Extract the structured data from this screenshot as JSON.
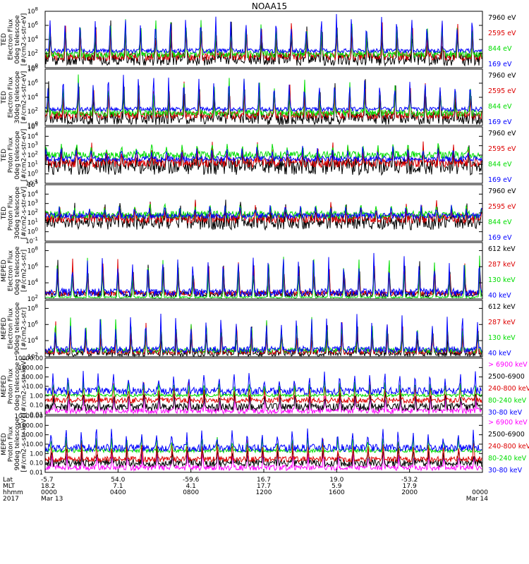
{
  "chart_data": {
    "type": "line",
    "title": "NOAA15",
    "x_range_hours": [
      0,
      24
    ],
    "panels": [
      {
        "ylabel_lines": [
          "TED",
          "Electron Flux",
          "0deg telescope",
          "[#/cm2-s-str-eV]"
        ],
        "scale": "log",
        "ylim": [
          1,
          100000000
        ],
        "ticks": [
          {
            "value": 1,
            "label": "10",
            "exp": "0"
          },
          {
            "value": 100,
            "label": "10",
            "exp": "2"
          },
          {
            "value": 10000,
            "label": "10",
            "exp": "4"
          },
          {
            "value": 1000000,
            "label": "10",
            "exp": "6"
          },
          {
            "value": 100000000,
            "label": "10",
            "exp": "8"
          }
        ],
        "series": [
          {
            "name": "7960 eV",
            "color": "#000000",
            "base": 1.2,
            "spike": 6.5,
            "noise": 0.9,
            "seed": 11
          },
          {
            "name": "2595 eV",
            "color": "#dd0000",
            "base": 1.6,
            "spike": 6.8,
            "noise": 0.6,
            "seed": 12
          },
          {
            "name": "844 eV",
            "color": "#00dd00",
            "base": 1.9,
            "spike": 7.2,
            "noise": 0.5,
            "seed": 13
          },
          {
            "name": "169 eV",
            "color": "#0000ff",
            "base": 2.4,
            "spike": 7.5,
            "noise": 0.3,
            "seed": 14
          }
        ]
      },
      {
        "ylabel_lines": [
          "TED",
          "Electron Flux",
          "30deg telescope",
          "[#/cm2-s-str-eV]"
        ],
        "scale": "log",
        "ylim": [
          1,
          100000000
        ],
        "ticks": [
          {
            "value": 1,
            "label": "10",
            "exp": "0"
          },
          {
            "value": 100,
            "label": "10",
            "exp": "2"
          },
          {
            "value": 10000,
            "label": "10",
            "exp": "4"
          },
          {
            "value": 1000000,
            "label": "10",
            "exp": "6"
          },
          {
            "value": 100000000,
            "label": "10",
            "exp": "8"
          }
        ],
        "series": [
          {
            "name": "7960 eV",
            "color": "#000000",
            "base": 1.0,
            "spike": 6.2,
            "noise": 0.9,
            "seed": 21
          },
          {
            "name": "2595 eV",
            "color": "#dd0000",
            "base": 1.5,
            "spike": 6.5,
            "noise": 0.6,
            "seed": 22
          },
          {
            "name": "844 eV",
            "color": "#00dd00",
            "base": 1.8,
            "spike": 6.9,
            "noise": 0.5,
            "seed": 23
          },
          {
            "name": "169 eV",
            "color": "#0000ff",
            "base": 2.3,
            "spike": 7.3,
            "noise": 0.3,
            "seed": 24
          }
        ]
      },
      {
        "ylabel_lines": [
          "TED",
          "Proton Flux",
          "0deg telescope",
          "[#/cm2-s-str-eV]"
        ],
        "scale": "log",
        "ylim": [
          0.1,
          100000
        ],
        "ticks": [
          {
            "value": 0.1,
            "label": "10",
            "exp": "-1"
          },
          {
            "value": 1,
            "label": "10",
            "exp": "0"
          },
          {
            "value": 10,
            "label": "10",
            "exp": "1"
          },
          {
            "value": 100,
            "label": "10",
            "exp": "2"
          },
          {
            "value": 1000,
            "label": "10",
            "exp": "3"
          },
          {
            "value": 10000,
            "label": "10",
            "exp": "4"
          },
          {
            "value": 100000,
            "label": "10",
            "exp": "5"
          }
        ],
        "series": [
          {
            "name": "7960 eV",
            "color": "#000000",
            "base": 0.8,
            "spike": 3.0,
            "noise": 0.9,
            "seed": 31
          },
          {
            "name": "2595 eV",
            "color": "#dd0000",
            "base": 1.2,
            "spike": 3.2,
            "noise": 0.5,
            "seed": 32
          },
          {
            "name": "844 eV",
            "color": "#00dd00",
            "base": 2.0,
            "spike": 3.3,
            "noise": 0.4,
            "seed": 33
          },
          {
            "name": "169 eV",
            "color": "#0000ff",
            "base": 1.6,
            "spike": 3.0,
            "noise": 0.3,
            "seed": 34
          }
        ]
      },
      {
        "ylabel_lines": [
          "TED",
          "Proton Flux",
          "30deg telescope",
          "[#/cm2-s-str-eV]"
        ],
        "scale": "log",
        "ylim": [
          0.1,
          100000
        ],
        "ticks": [
          {
            "value": 0.1,
            "label": "10",
            "exp": "-1"
          },
          {
            "value": 1,
            "label": "10",
            "exp": "0"
          },
          {
            "value": 10,
            "label": "10",
            "exp": "1"
          },
          {
            "value": 100,
            "label": "10",
            "exp": "2"
          },
          {
            "value": 1000,
            "label": "10",
            "exp": "3"
          },
          {
            "value": 10000,
            "label": "10",
            "exp": "4"
          },
          {
            "value": 100000,
            "label": "10",
            "exp": "5"
          }
        ],
        "series": [
          {
            "name": "7960 eV",
            "color": "#000000",
            "base": 1.0,
            "spike": 2.8,
            "noise": 0.8,
            "seed": 41
          },
          {
            "name": "2595 eV",
            "color": "#dd0000",
            "base": 1.4,
            "spike": 3.0,
            "noise": 0.5,
            "seed": 42
          },
          {
            "name": "844 eV",
            "color": "#00dd00",
            "base": 1.8,
            "spike": 3.0,
            "noise": 0.4,
            "seed": 43
          },
          {
            "name": "169 eV",
            "color": "#0000ff",
            "base": 1.7,
            "spike": 2.8,
            "noise": 0.3,
            "seed": 44
          }
        ]
      },
      {
        "ylabel_lines": [
          "MEPED",
          "Electron Flux",
          "0deg telescope",
          "[#/cm2-s-str]"
        ],
        "scale": "log",
        "ylim": [
          100,
          1000000000
        ],
        "ticks": [
          {
            "value": 100,
            "label": "10",
            "exp": "2"
          },
          {
            "value": 10000,
            "label": "10",
            "exp": "4"
          },
          {
            "value": 1000000,
            "label": "10",
            "exp": "6"
          },
          {
            "value": 100000000,
            "label": "10",
            "exp": "8"
          }
        ],
        "series": [
          {
            "name": "612 keV",
            "color": "#000000",
            "base": 2.6,
            "spike": 7.0,
            "noise": 0.4,
            "seed": 51
          },
          {
            "name": "287 keV",
            "color": "#dd0000",
            "base": 2.7,
            "spike": 7.2,
            "noise": 0.3,
            "seed": 52
          },
          {
            "name": "130 keV",
            "color": "#00dd00",
            "base": 2.2,
            "spike": 7.4,
            "noise": 0.1,
            "seed": 53
          },
          {
            "name": "40 keV",
            "color": "#0000ff",
            "base": 2.8,
            "spike": 7.6,
            "noise": 0.5,
            "seed": 54
          }
        ]
      },
      {
        "ylabel_lines": [
          "MEPED",
          "Electron Flux",
          "90deg telescope",
          "[#/cm2-s-str]"
        ],
        "scale": "log",
        "ylim": [
          100,
          1000000000
        ],
        "ticks": [
          {
            "value": 100,
            "label": "10",
            "exp": "2"
          },
          {
            "value": 10000,
            "label": "10",
            "exp": "4"
          },
          {
            "value": 1000000,
            "label": "10",
            "exp": "6"
          },
          {
            "value": 100000000,
            "label": "10",
            "exp": "8"
          }
        ],
        "series": [
          {
            "name": "612 keV",
            "color": "#000000",
            "base": 2.4,
            "spike": 5.8,
            "noise": 0.4,
            "seed": 61
          },
          {
            "name": "287 keV",
            "color": "#dd0000",
            "base": 2.6,
            "spike": 6.5,
            "noise": 0.3,
            "seed": 62
          },
          {
            "name": "130 keV",
            "color": "#00dd00",
            "base": 2.8,
            "spike": 7.0,
            "noise": 0.3,
            "seed": 63
          },
          {
            "name": "40 keV",
            "color": "#0000ff",
            "base": 2.9,
            "spike": 7.4,
            "noise": 0.4,
            "seed": 64
          }
        ]
      },
      {
        "ylabel_lines": [
          "MEPED",
          "Proton Flux",
          "0deg telescope",
          "[#/cm2-s-str-keV]"
        ],
        "scale": "log",
        "ylim": [
          0.01,
          10000
        ],
        "ticks": [
          {
            "value": 0.01,
            "label": "0.01"
          },
          {
            "value": 0.1,
            "label": "0.10"
          },
          {
            "value": 1,
            "label": "1.00"
          },
          {
            "value": 10,
            "label": "10.00"
          },
          {
            "value": 100,
            "label": "100.00"
          },
          {
            "value": 1000,
            "label": "1000.00"
          },
          {
            "value": 10000,
            "label": "10000.00"
          }
        ],
        "series": [
          {
            "name": "> 6900 keV",
            "color": "#ff00ff",
            "base": -1.6,
            "spike": 0.4,
            "noise": 0.3,
            "seed": 71
          },
          {
            "name": "2500-6900",
            "color": "#000000",
            "base": -1.2,
            "spike": 0.8,
            "noise": 0.4,
            "seed": 72
          },
          {
            "name": "240-800 keV",
            "color": "#dd0000",
            "base": -0.5,
            "spike": 1.5,
            "noise": 0.3,
            "seed": 73
          },
          {
            "name": "80-240 keV",
            "color": "#00dd00",
            "base": 0.05,
            "spike": 1.8,
            "noise": 0.15,
            "seed": 74
          },
          {
            "name": "30-80 keV",
            "color": "#0000ff",
            "base": 0.5,
            "spike": 2.6,
            "noise": 0.4,
            "seed": 75
          }
        ]
      },
      {
        "ylabel_lines": [
          "MEPED",
          "Proton Flux",
          "90deg telescope",
          "[#/cm2-s-str-keV]"
        ],
        "scale": "log",
        "ylim": [
          0.01,
          10000
        ],
        "ticks": [
          {
            "value": 0.01,
            "label": "0.01"
          },
          {
            "value": 0.1,
            "label": "0.10"
          },
          {
            "value": 1,
            "label": "1.00"
          },
          {
            "value": 10,
            "label": "10.00"
          },
          {
            "value": 100,
            "label": "100.00"
          },
          {
            "value": 1000,
            "label": "1000.00"
          },
          {
            "value": 10000,
            "label": "10000.00"
          }
        ],
        "series": [
          {
            "name": "> 6900 keV",
            "color": "#ff00ff",
            "base": -1.5,
            "spike": 0.5,
            "noise": 0.3,
            "seed": 81
          },
          {
            "name": "2500-6900",
            "color": "#000000",
            "base": -1.0,
            "spike": 0.9,
            "noise": 0.4,
            "seed": 82
          },
          {
            "name": "240-800 keV",
            "color": "#dd0000",
            "base": -0.6,
            "spike": 1.5,
            "noise": 0.3,
            "seed": 83
          },
          {
            "name": "80-240 keV",
            "color": "#00dd00",
            "base": 0.3,
            "spike": 1.9,
            "noise": 0.2,
            "seed": 84
          },
          {
            "name": "30-80 keV",
            "color": "#0000ff",
            "base": 0.6,
            "spike": 2.6,
            "noise": 0.4,
            "seed": 85
          }
        ]
      }
    ],
    "xaxis": {
      "row_labels": [
        "Lat",
        "MLT",
        "hhmm",
        "2017"
      ],
      "ticks": [
        {
          "hour": 0,
          "lat": "-5.7",
          "mlt": "18.2",
          "hhmm": "0000",
          "date": "Mar 13"
        },
        {
          "hour": 4,
          "lat": "54.0",
          "mlt": "7.1",
          "hhmm": "0400",
          "date": ""
        },
        {
          "hour": 8,
          "lat": "-59.6",
          "mlt": "4.1",
          "hhmm": "0800",
          "date": ""
        },
        {
          "hour": 12,
          "lat": "16.7",
          "mlt": "17.7",
          "hhmm": "1200",
          "date": ""
        },
        {
          "hour": 16,
          "lat": "19.0",
          "mlt": "5.9",
          "hhmm": "1600",
          "date": ""
        },
        {
          "hour": 20,
          "lat": "-53.2",
          "mlt": "17.9",
          "hhmm": "2000",
          "date": ""
        },
        {
          "hour": 24,
          "lat": "",
          "mlt": "",
          "hhmm": "0000",
          "date": "Mar 14"
        }
      ]
    },
    "passes_per_day": 29
  }
}
